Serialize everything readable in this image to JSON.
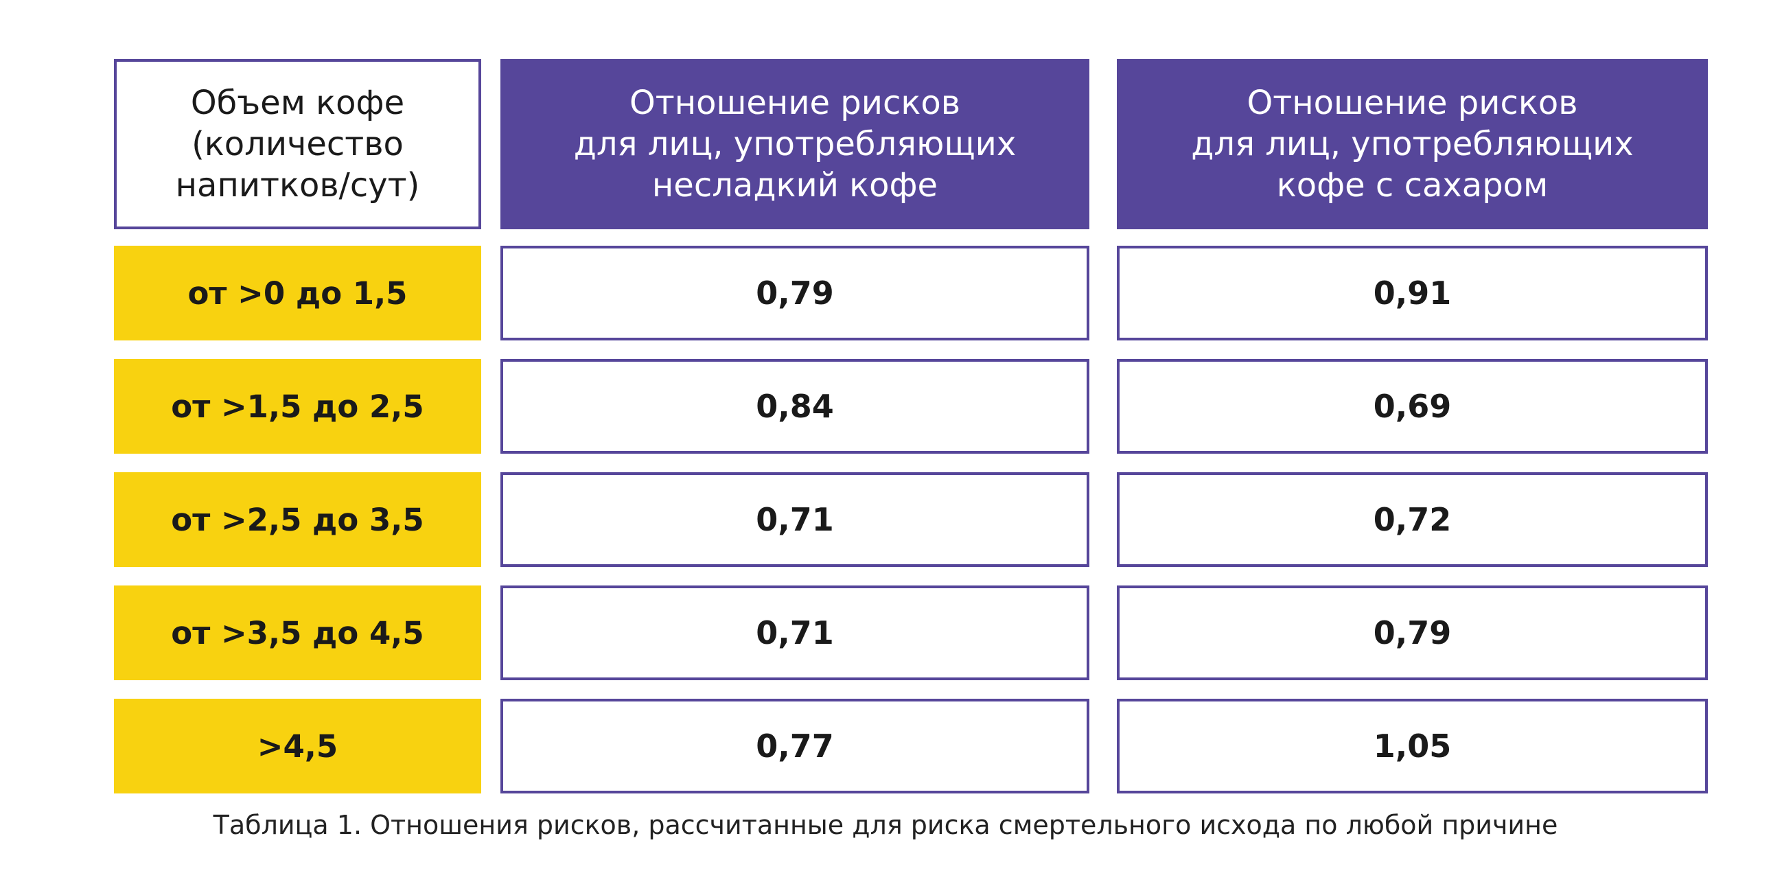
{
  "colors": {
    "accent": "#56469a",
    "highlight": "#f8d210",
    "text": "#1a1a1a",
    "background": "#ffffff"
  },
  "chart_data": {
    "type": "table",
    "columns": [
      "Объем кофе\n(количество\nнапитков/сут)",
      "Отношение рисков\nдля лиц, употребляющих\nнесладкий кофе",
      "Отношение рисков\nдля лиц, употребляющих\nкофе с сахаром"
    ],
    "rows": [
      {
        "label": "от >0 до 1,5",
        "unsweetened": "0,79",
        "sugar": "0,91"
      },
      {
        "label": "от >1,5 до 2,5",
        "unsweetened": "0,84",
        "sugar": "0,69"
      },
      {
        "label": "от >2,5 до 3,5",
        "unsweetened": "0,71",
        "sugar": "0,72"
      },
      {
        "label": "от >3,5 до 4,5",
        "unsweetened": "0,71",
        "sugar": "0,79"
      },
      {
        "label": ">4,5",
        "unsweetened": "0,77",
        "sugar": "1,05"
      }
    ],
    "caption": "Таблица 1. Отношения рисков, рассчитанные для риска смертельного исхода по любой причине"
  }
}
